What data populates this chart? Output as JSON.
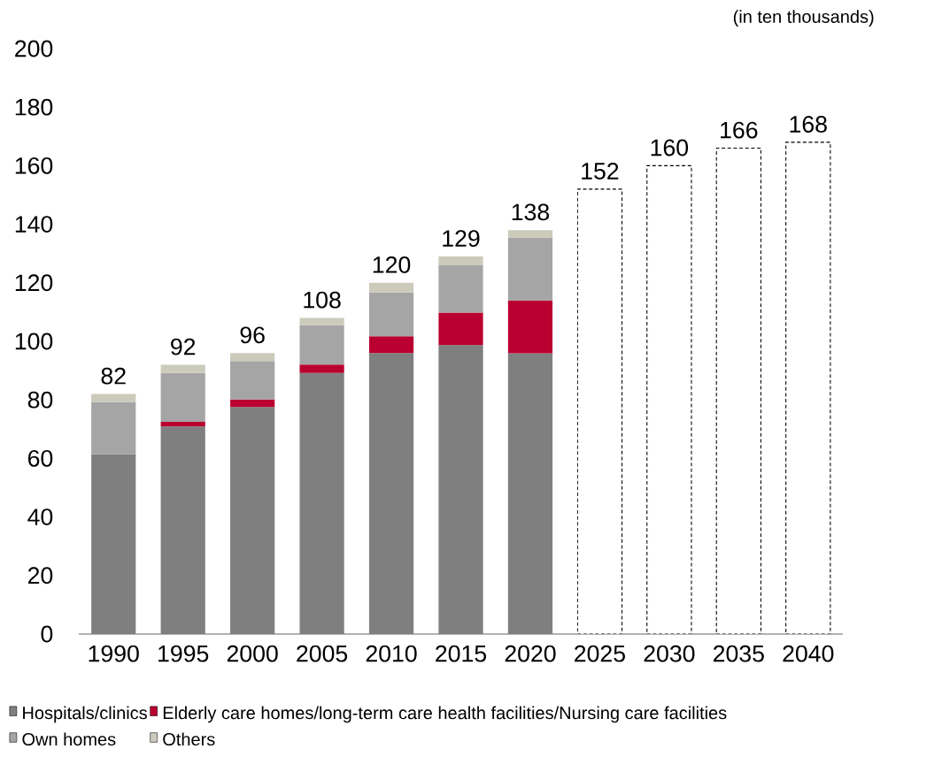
{
  "chart_data": {
    "type": "bar",
    "stacked": true,
    "ylabel": "(in ten thousands)",
    "categories": [
      "1990",
      "1995",
      "2000",
      "2005",
      "2010",
      "2015",
      "2020",
      "2025",
      "2030",
      "2035",
      "2040"
    ],
    "series": [
      {
        "name": "Hospitals/clinics",
        "color": "#7f7f7f",
        "values": [
          61.5,
          70.9,
          77.6,
          89.2,
          96.0,
          98.7,
          95.9,
          null,
          null,
          null,
          null
        ]
      },
      {
        "name": "Elderly care homes/long-term care health facilities/Nursing care facilities",
        "color": "#b90030",
        "values": [
          0,
          1.6,
          2.5,
          2.9,
          5.7,
          11.1,
          18.1,
          null,
          null,
          null,
          null
        ]
      },
      {
        "name": "Own homes",
        "color": "#a5a5a5",
        "values": [
          17.8,
          16.7,
          13.2,
          13.4,
          15.0,
          16.2,
          21.4,
          null,
          null,
          null,
          null
        ]
      },
      {
        "name": "Others",
        "color": "#cccbbb",
        "values": [
          2.7,
          2.8,
          2.7,
          2.5,
          3.3,
          3.0,
          2.6,
          null,
          null,
          null,
          null
        ]
      },
      {
        "color": "#ffffff",
        "line_style": "dashed",
        "values": [
          null,
          null,
          null,
          null,
          null,
          null,
          null,
          152,
          160,
          166,
          168
        ]
      }
    ],
    "totals": [
      "82",
      "92",
      "96",
      "108",
      "120",
      "129",
      "138",
      "152",
      "160",
      "166",
      "168"
    ],
    "ylim": [
      0,
      200
    ],
    "yticks": [
      0,
      20,
      40,
      60,
      80,
      100,
      120,
      140,
      160,
      180,
      200
    ],
    "grid": false,
    "legend": "bottom"
  }
}
